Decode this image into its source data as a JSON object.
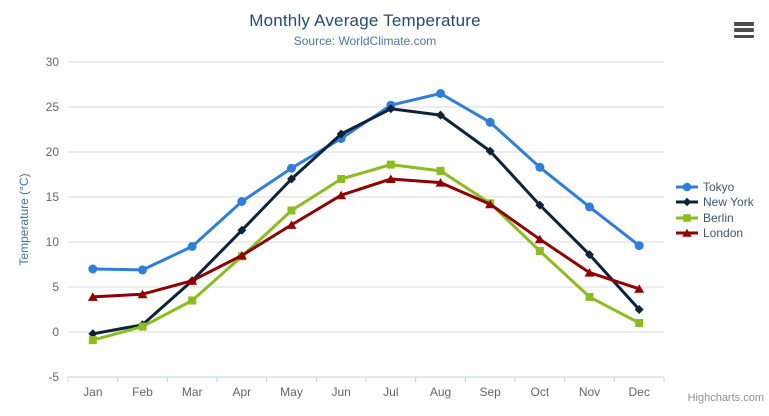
{
  "header": {
    "title": "Monthly Average Temperature",
    "subtitle": "Source: WorldClimate.com"
  },
  "credits": "Highcharts.com",
  "icons": {
    "menu": "hamburger-menu-icon"
  },
  "colors": {
    "title": "#274b6d",
    "subtitle": "#4d759e",
    "axis_label": "#666666",
    "axis_title": "#4572A7",
    "grid": "#D8D8D8",
    "axis_line": "#C0D0E0",
    "legend_text": "#3E576F",
    "credits_text": "#909090"
  },
  "chart_data": {
    "type": "line",
    "title": "Monthly Average Temperature",
    "subtitle": "Source: WorldClimate.com",
    "categories": [
      "Jan",
      "Feb",
      "Mar",
      "Apr",
      "May",
      "Jun",
      "Jul",
      "Aug",
      "Sep",
      "Oct",
      "Nov",
      "Dec"
    ],
    "xlabel": "",
    "ylabel": "Temperature (°C)",
    "ylim": [
      -5,
      30
    ],
    "ytick_interval": 5,
    "grid": true,
    "legend_position": "right",
    "series": [
      {
        "name": "Tokyo",
        "color": "#2f7ed8",
        "marker": "circle",
        "values": [
          7.0,
          6.9,
          9.5,
          14.5,
          18.2,
          21.5,
          25.2,
          26.5,
          23.3,
          18.3,
          13.9,
          9.6
        ]
      },
      {
        "name": "New York",
        "color": "#0d233a",
        "marker": "diamond",
        "values": [
          -0.2,
          0.8,
          5.7,
          11.3,
          17.0,
          22.0,
          24.8,
          24.1,
          20.1,
          14.1,
          8.6,
          2.5
        ]
      },
      {
        "name": "Berlin",
        "color": "#8bbc21",
        "marker": "square",
        "values": [
          -0.9,
          0.6,
          3.5,
          8.4,
          13.5,
          17.0,
          18.6,
          17.9,
          14.3,
          9.0,
          3.9,
          1.0
        ]
      },
      {
        "name": "London",
        "color": "#910000",
        "marker": "triangle",
        "values": [
          3.9,
          4.2,
          5.7,
          8.5,
          11.9,
          15.2,
          17.0,
          16.6,
          14.2,
          10.3,
          6.6,
          4.8
        ]
      }
    ]
  }
}
